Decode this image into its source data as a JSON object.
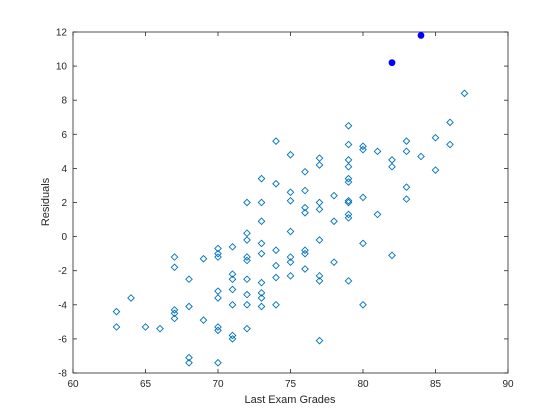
{
  "chart_data": {
    "type": "scatter",
    "title": "",
    "xlabel": "Last Exam Grades",
    "ylabel": "Residuals",
    "xlim": [
      60,
      90
    ],
    "ylim": [
      -8,
      12
    ],
    "xticks": [
      "60",
      "65",
      "70",
      "75",
      "80",
      "85",
      "90"
    ],
    "yticks": [
      "-8",
      "-6",
      "-4",
      "-2",
      "0",
      "2",
      "4",
      "6",
      "8",
      "10",
      "12"
    ],
    "grid": false,
    "legend": "none",
    "colors": {
      "marker": "#0072BD",
      "highlight": "#0000FF",
      "axis": "#262626"
    },
    "series": [
      {
        "marker": "diamond-open",
        "points": [
          [
            63,
            -4.4
          ],
          [
            63,
            -5.3
          ],
          [
            64,
            -3.6
          ],
          [
            65,
            -5.3
          ],
          [
            66,
            -5.4
          ],
          [
            67,
            -1.2
          ],
          [
            67,
            -1.8
          ],
          [
            67,
            -4.3
          ],
          [
            67,
            -4.5
          ],
          [
            67,
            -4.8
          ],
          [
            68,
            -2.5
          ],
          [
            68,
            -4.1
          ],
          [
            68,
            -7.1
          ],
          [
            68,
            -7.4
          ],
          [
            69,
            -1.3
          ],
          [
            69,
            -4.9
          ],
          [
            70,
            -0.7
          ],
          [
            70,
            -1.0
          ],
          [
            70,
            -1.2
          ],
          [
            70,
            -3.2
          ],
          [
            70,
            -3.6
          ],
          [
            70,
            -5.3
          ],
          [
            70,
            -5.5
          ],
          [
            70,
            -7.4
          ],
          [
            71,
            -0.6
          ],
          [
            71,
            -2.2
          ],
          [
            71,
            -2.5
          ],
          [
            71,
            -3.1
          ],
          [
            71,
            -4.0
          ],
          [
            71,
            -5.8
          ],
          [
            71,
            -6.0
          ],
          [
            72,
            2.0
          ],
          [
            72,
            0.2
          ],
          [
            72,
            -0.2
          ],
          [
            72,
            -1.2
          ],
          [
            72,
            -1.4
          ],
          [
            72,
            -2.5
          ],
          [
            72,
            -3.4
          ],
          [
            72,
            -4.0
          ],
          [
            72,
            -5.4
          ],
          [
            73,
            3.4
          ],
          [
            73,
            2.0
          ],
          [
            73,
            0.9
          ],
          [
            73,
            -0.4
          ],
          [
            73,
            -1.0
          ],
          [
            73,
            -2.7
          ],
          [
            73,
            -3.3
          ],
          [
            73,
            -3.6
          ],
          [
            73,
            -4.1
          ],
          [
            74,
            5.6
          ],
          [
            74,
            3.1
          ],
          [
            74,
            -0.8
          ],
          [
            74,
            -1.7
          ],
          [
            74,
            -2.4
          ],
          [
            74,
            -4.0
          ],
          [
            75,
            4.8
          ],
          [
            75,
            2.6
          ],
          [
            75,
            2.1
          ],
          [
            75,
            0.3
          ],
          [
            75,
            -1.2
          ],
          [
            75,
            -1.5
          ],
          [
            75,
            -2.3
          ],
          [
            76,
            3.8
          ],
          [
            76,
            2.7
          ],
          [
            76,
            1.7
          ],
          [
            76,
            1.4
          ],
          [
            76,
            -0.8
          ],
          [
            76,
            -1.0
          ],
          [
            76,
            -1.9
          ],
          [
            77,
            4.6
          ],
          [
            77,
            4.2
          ],
          [
            77,
            2.0
          ],
          [
            77,
            1.6
          ],
          [
            77,
            -0.2
          ],
          [
            77,
            -2.3
          ],
          [
            77,
            -2.6
          ],
          [
            77,
            -6.1
          ],
          [
            78,
            2.4
          ],
          [
            78,
            0.9
          ],
          [
            78,
            -1.5
          ],
          [
            79,
            6.5
          ],
          [
            79,
            5.4
          ],
          [
            79,
            4.5
          ],
          [
            79,
            4.1
          ],
          [
            79,
            3.4
          ],
          [
            79,
            3.2
          ],
          [
            79,
            2.1
          ],
          [
            79,
            2.0
          ],
          [
            79,
            1.3
          ],
          [
            79,
            1.1
          ],
          [
            79,
            -2.6
          ],
          [
            80,
            5.3
          ],
          [
            80,
            5.1
          ],
          [
            80,
            2.3
          ],
          [
            80,
            -0.4
          ],
          [
            80,
            -4.0
          ],
          [
            81,
            5.0
          ],
          [
            81,
            1.3
          ],
          [
            82,
            4.5
          ],
          [
            82,
            4.1
          ],
          [
            82,
            -1.1
          ],
          [
            83,
            5.6
          ],
          [
            83,
            5.0
          ],
          [
            83,
            2.9
          ],
          [
            83,
            2.2
          ],
          [
            84,
            4.7
          ],
          [
            85,
            5.8
          ],
          [
            85,
            3.9
          ],
          [
            86,
            6.7
          ],
          [
            86,
            5.4
          ],
          [
            87,
            8.4
          ]
        ]
      },
      {
        "marker": "filled-dot",
        "points": [
          [
            82,
            10.2
          ],
          [
            84,
            11.8
          ]
        ]
      }
    ]
  }
}
